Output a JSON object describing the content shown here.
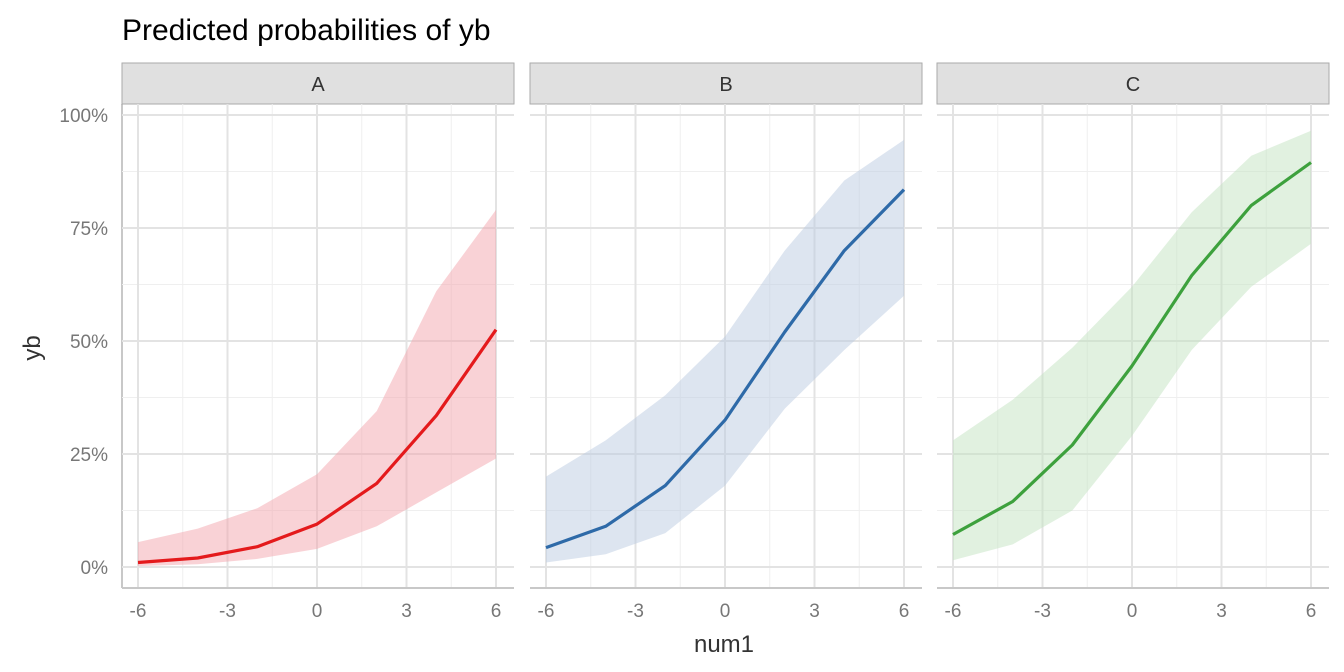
{
  "chart_data": {
    "type": "line",
    "title": "Predicted probabilities of yb",
    "xlabel": "num1",
    "ylabel": "yb",
    "x_ticks": [
      "-6",
      "-3",
      "0",
      "3",
      "6"
    ],
    "y_ticks": [
      "0%",
      "25%",
      "50%",
      "75%",
      "100%"
    ],
    "xlim": [
      -6,
      6
    ],
    "ylim": [
      0,
      1
    ],
    "grid": true,
    "x": [
      -6,
      -4,
      -2,
      0,
      2,
      4,
      6
    ],
    "panels": [
      {
        "name": "A",
        "color": "#e41a1c",
        "ribbon_color": "#f4a5ae",
        "values": [
          0.01,
          0.02,
          0.045,
          0.095,
          0.185,
          0.335,
          0.525
        ],
        "lower": [
          0.002,
          0.006,
          0.018,
          0.04,
          0.09,
          0.165,
          0.24
        ],
        "upper": [
          0.055,
          0.085,
          0.13,
          0.205,
          0.345,
          0.61,
          0.79
        ]
      },
      {
        "name": "B",
        "color": "#2e6aa8",
        "ribbon_color": "#bccbe1",
        "values": [
          0.043,
          0.09,
          0.18,
          0.325,
          0.52,
          0.7,
          0.835
        ],
        "lower": [
          0.01,
          0.028,
          0.075,
          0.18,
          0.35,
          0.48,
          0.6
        ],
        "upper": [
          0.2,
          0.28,
          0.38,
          0.51,
          0.7,
          0.855,
          0.945
        ]
      },
      {
        "name": "C",
        "color": "#3da13d",
        "ribbon_color": "#c3e3c2",
        "values": [
          0.072,
          0.145,
          0.27,
          0.445,
          0.645,
          0.8,
          0.895
        ],
        "lower": [
          0.015,
          0.05,
          0.125,
          0.29,
          0.48,
          0.62,
          0.715
        ],
        "upper": [
          0.28,
          0.37,
          0.485,
          0.62,
          0.785,
          0.91,
          0.965
        ]
      }
    ]
  }
}
